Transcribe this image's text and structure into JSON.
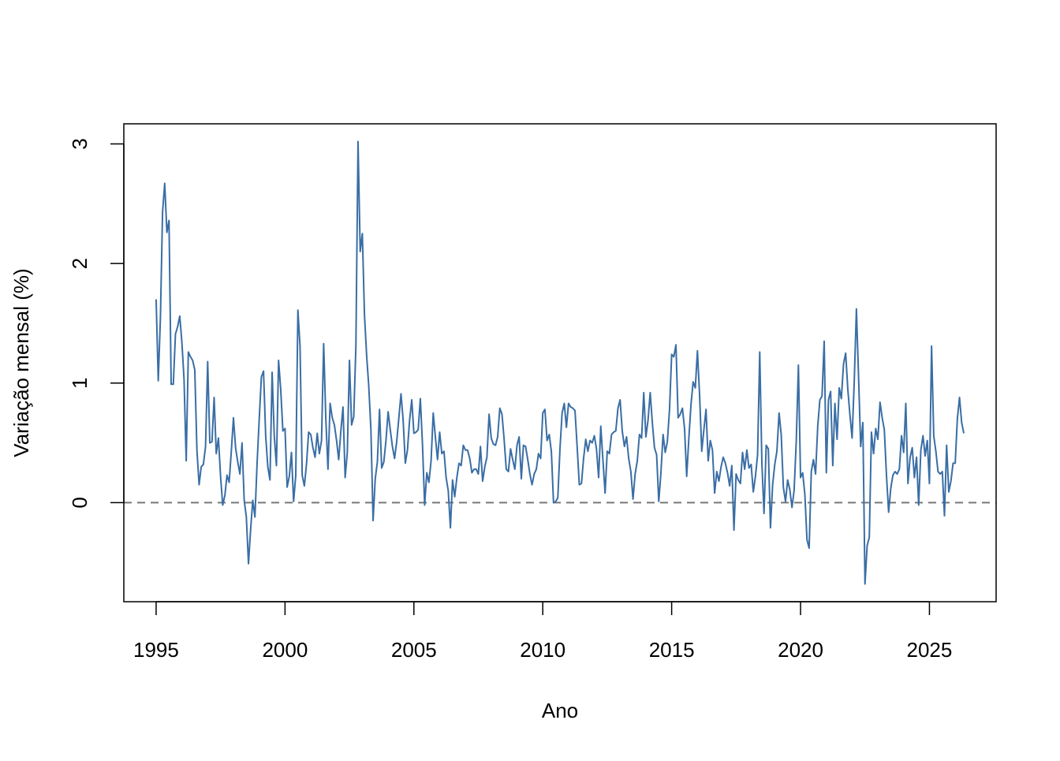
{
  "chart_data": {
    "type": "line",
    "x_label": "Ano",
    "y_label": "Variação mensal (%)",
    "xlim": [
      1993.747,
      2027.587
    ],
    "ylim": [
      -0.828,
      3.168
    ],
    "xticks": [
      1995,
      2000,
      2005,
      2010,
      2015,
      2020,
      2025
    ],
    "yticks": [
      0,
      1,
      2,
      3
    ],
    "grid": false,
    "reference_line": {
      "value": 0,
      "color": "#777777",
      "dashed": true
    },
    "x": [
      1995.0,
      1995.083,
      1995.167,
      1995.25,
      1995.333,
      1995.417,
      1995.5,
      1995.583,
      1995.667,
      1995.75,
      1995.833,
      1995.917,
      1996.0,
      1996.083,
      1996.167,
      1996.25,
      1996.333,
      1996.417,
      1996.5,
      1996.583,
      1996.667,
      1996.75,
      1996.833,
      1996.917,
      1997.0,
      1997.083,
      1997.167,
      1997.25,
      1997.333,
      1997.417,
      1997.5,
      1997.583,
      1997.667,
      1997.75,
      1997.833,
      1997.917,
      1998.0,
      1998.083,
      1998.167,
      1998.25,
      1998.333,
      1998.417,
      1998.5,
      1998.583,
      1998.667,
      1998.75,
      1998.833,
      1998.917,
      1999.0,
      1999.083,
      1999.167,
      1999.25,
      1999.333,
      1999.417,
      1999.5,
      1999.583,
      1999.667,
      1999.75,
      1999.833,
      1999.917,
      2000.0,
      2000.083,
      2000.167,
      2000.25,
      2000.333,
      2000.417,
      2000.5,
      2000.583,
      2000.667,
      2000.75,
      2000.833,
      2000.917,
      2001.0,
      2001.083,
      2001.167,
      2001.25,
      2001.333,
      2001.417,
      2001.5,
      2001.583,
      2001.667,
      2001.75,
      2001.833,
      2001.917,
      2002.0,
      2002.083,
      2002.167,
      2002.25,
      2002.333,
      2002.417,
      2002.5,
      2002.583,
      2002.667,
      2002.75,
      2002.833,
      2002.917,
      2003.0,
      2003.083,
      2003.167,
      2003.25,
      2003.333,
      2003.417,
      2003.5,
      2003.583,
      2003.667,
      2003.75,
      2003.833,
      2003.917,
      2004.0,
      2004.083,
      2004.167,
      2004.25,
      2004.333,
      2004.417,
      2004.5,
      2004.583,
      2004.667,
      2004.75,
      2004.833,
      2004.917,
      2005.0,
      2005.083,
      2005.167,
      2005.25,
      2005.333,
      2005.417,
      2005.5,
      2005.583,
      2005.667,
      2005.75,
      2005.833,
      2005.917,
      2006.0,
      2006.083,
      2006.167,
      2006.25,
      2006.333,
      2006.417,
      2006.5,
      2006.583,
      2006.667,
      2006.75,
      2006.833,
      2006.917,
      2007.0,
      2007.083,
      2007.167,
      2007.25,
      2007.333,
      2007.417,
      2007.5,
      2007.583,
      2007.667,
      2007.75,
      2007.833,
      2007.917,
      2008.0,
      2008.083,
      2008.167,
      2008.25,
      2008.333,
      2008.417,
      2008.5,
      2008.583,
      2008.667,
      2008.75,
      2008.833,
      2008.917,
      2009.0,
      2009.083,
      2009.167,
      2009.25,
      2009.333,
      2009.417,
      2009.5,
      2009.583,
      2009.667,
      2009.75,
      2009.833,
      2009.917,
      2010.0,
      2010.083,
      2010.167,
      2010.25,
      2010.333,
      2010.417,
      2010.5,
      2010.583,
      2010.667,
      2010.75,
      2010.833,
      2010.917,
      2011.0,
      2011.083,
      2011.167,
      2011.25,
      2011.333,
      2011.417,
      2011.5,
      2011.583,
      2011.667,
      2011.75,
      2011.833,
      2011.917,
      2012.0,
      2012.083,
      2012.167,
      2012.25,
      2012.333,
      2012.417,
      2012.5,
      2012.583,
      2012.667,
      2012.75,
      2012.833,
      2012.917,
      2013.0,
      2013.083,
      2013.167,
      2013.25,
      2013.333,
      2013.417,
      2013.5,
      2013.583,
      2013.667,
      2013.75,
      2013.833,
      2013.917,
      2014.0,
      2014.083,
      2014.167,
      2014.25,
      2014.333,
      2014.417,
      2014.5,
      2014.583,
      2014.667,
      2014.75,
      2014.833,
      2014.917,
      2015.0,
      2015.083,
      2015.167,
      2015.25,
      2015.333,
      2015.417,
      2015.5,
      2015.583,
      2015.667,
      2015.75,
      2015.833,
      2015.917,
      2016.0,
      2016.083,
      2016.167,
      2016.25,
      2016.333,
      2016.417,
      2016.5,
      2016.583,
      2016.667,
      2016.75,
      2016.833,
      2016.917,
      2017.0,
      2017.083,
      2017.167,
      2017.25,
      2017.333,
      2017.417,
      2017.5,
      2017.583,
      2017.667,
      2017.75,
      2017.833,
      2017.917,
      2018.0,
      2018.083,
      2018.167,
      2018.25,
      2018.333,
      2018.417,
      2018.5,
      2018.583,
      2018.667,
      2018.75,
      2018.833,
      2018.917,
      2019.0,
      2019.083,
      2019.167,
      2019.25,
      2019.333,
      2019.417,
      2019.5,
      2019.583,
      2019.667,
      2019.75,
      2019.833,
      2019.917,
      2020.0,
      2020.083,
      2020.167,
      2020.25,
      2020.333,
      2020.417,
      2020.5,
      2020.583,
      2020.667,
      2020.75,
      2020.833,
      2020.917,
      2021.0,
      2021.083,
      2021.167,
      2021.25,
      2021.333,
      2021.417,
      2021.5,
      2021.583,
      2021.667,
      2021.75,
      2021.833,
      2021.917,
      2022.0,
      2022.083,
      2022.167,
      2022.25,
      2022.333,
      2022.417,
      2022.5,
      2022.583,
      2022.667,
      2022.75,
      2022.833,
      2022.917,
      2023.0,
      2023.083,
      2023.167,
      2023.25,
      2023.333,
      2023.417,
      2023.5,
      2023.583,
      2023.667,
      2023.75,
      2023.833,
      2023.917,
      2024.0,
      2024.083,
      2024.167,
      2024.25,
      2024.333,
      2024.417,
      2024.5,
      2024.583,
      2024.667,
      2024.75,
      2024.833,
      2024.917,
      2025.0,
      2025.083,
      2025.167,
      2025.25,
      2025.333,
      2025.417,
      2025.5,
      2025.583,
      2025.667,
      2025.75,
      2025.833,
      2025.917,
      2026.0,
      2026.083,
      2026.167,
      2026.25,
      2026.333
    ],
    "series": [
      {
        "color": "#3a6ea5",
        "values": [
          1.7,
          1.02,
          1.55,
          2.43,
          2.67,
          2.26,
          2.36,
          0.99,
          0.99,
          1.41,
          1.47,
          1.56,
          1.34,
          1.03,
          0.35,
          1.26,
          1.22,
          1.19,
          1.11,
          0.44,
          0.15,
          0.3,
          0.32,
          0.47,
          1.18,
          0.5,
          0.51,
          0.88,
          0.41,
          0.54,
          0.22,
          -0.02,
          0.06,
          0.23,
          0.17,
          0.43,
          0.71,
          0.46,
          0.34,
          0.24,
          0.5,
          0.02,
          -0.12,
          -0.51,
          -0.22,
          0.02,
          -0.12,
          0.33,
          0.7,
          1.05,
          1.1,
          0.56,
          0.3,
          0.19,
          1.09,
          0.56,
          0.31,
          1.19,
          0.95,
          0.6,
          0.62,
          0.13,
          0.22,
          0.42,
          0.01,
          0.23,
          1.61,
          1.31,
          0.23,
          0.14,
          0.32,
          0.59,
          0.57,
          0.46,
          0.38,
          0.58,
          0.41,
          0.52,
          1.33,
          0.7,
          0.28,
          0.83,
          0.71,
          0.65,
          0.52,
          0.36,
          0.6,
          0.8,
          0.21,
          0.42,
          1.19,
          0.65,
          0.72,
          1.31,
          3.02,
          2.1,
          2.25,
          1.57,
          1.23,
          0.97,
          0.61,
          -0.15,
          0.2,
          0.34,
          0.78,
          0.29,
          0.34,
          0.52,
          0.76,
          0.61,
          0.47,
          0.37,
          0.51,
          0.71,
          0.91,
          0.69,
          0.33,
          0.44,
          0.69,
          0.86,
          0.58,
          0.59,
          0.61,
          0.87,
          0.49,
          -0.02,
          0.25,
          0.17,
          0.35,
          0.75,
          0.55,
          0.36,
          0.59,
          0.41,
          0.43,
          0.21,
          0.1,
          -0.21,
          0.19,
          0.05,
          0.21,
          0.33,
          0.31,
          0.48,
          0.44,
          0.44,
          0.37,
          0.25,
          0.28,
          0.28,
          0.24,
          0.47,
          0.18,
          0.3,
          0.38,
          0.74,
          0.54,
          0.49,
          0.48,
          0.55,
          0.79,
          0.74,
          0.53,
          0.28,
          0.26,
          0.45,
          0.36,
          0.28,
          0.48,
          0.55,
          0.2,
          0.48,
          0.47,
          0.36,
          0.24,
          0.15,
          0.24,
          0.28,
          0.41,
          0.37,
          0.75,
          0.78,
          0.52,
          0.57,
          0.43,
          0.0,
          0.01,
          0.04,
          0.45,
          0.75,
          0.83,
          0.63,
          0.83,
          0.8,
          0.79,
          0.77,
          0.47,
          0.15,
          0.16,
          0.37,
          0.53,
          0.43,
          0.52,
          0.5,
          0.56,
          0.45,
          0.21,
          0.64,
          0.36,
          0.08,
          0.43,
          0.41,
          0.57,
          0.59,
          0.6,
          0.79,
          0.86,
          0.6,
          0.47,
          0.55,
          0.37,
          0.26,
          0.03,
          0.24,
          0.35,
          0.57,
          0.54,
          0.92,
          0.55,
          0.69,
          0.92,
          0.67,
          0.46,
          0.4,
          0.01,
          0.25,
          0.57,
          0.42,
          0.51,
          0.78,
          1.24,
          1.22,
          1.32,
          0.71,
          0.74,
          0.79,
          0.62,
          0.22,
          0.54,
          0.82,
          1.01,
          0.96,
          1.27,
          0.9,
          0.43,
          0.61,
          0.78,
          0.35,
          0.52,
          0.44,
          0.08,
          0.26,
          0.18,
          0.3,
          0.38,
          0.33,
          0.25,
          0.14,
          0.31,
          -0.23,
          0.24,
          0.19,
          0.16,
          0.42,
          0.28,
          0.44,
          0.29,
          0.32,
          0.09,
          0.22,
          0.4,
          1.26,
          0.33,
          -0.09,
          0.48,
          0.45,
          -0.21,
          0.15,
          0.32,
          0.43,
          0.75,
          0.57,
          0.13,
          0.01,
          0.19,
          0.11,
          -0.04,
          0.1,
          0.51,
          1.15,
          0.21,
          0.25,
          0.07,
          -0.31,
          -0.38,
          0.26,
          0.36,
          0.24,
          0.64,
          0.86,
          0.89,
          1.35,
          0.25,
          0.86,
          0.93,
          0.31,
          0.83,
          0.53,
          0.96,
          0.87,
          1.16,
          1.25,
          0.95,
          0.73,
          0.54,
          1.01,
          1.62,
          1.06,
          0.47,
          0.67,
          -0.68,
          -0.36,
          -0.29,
          0.59,
          0.41,
          0.62,
          0.53,
          0.84,
          0.71,
          0.61,
          0.23,
          -0.08,
          0.12,
          0.23,
          0.26,
          0.24,
          0.28,
          0.56,
          0.42,
          0.83,
          0.16,
          0.38,
          0.46,
          0.21,
          0.38,
          -0.02,
          0.44,
          0.56,
          0.39,
          0.52,
          0.16,
          1.31,
          0.56,
          0.43,
          0.26,
          0.24,
          0.26,
          -0.11,
          0.48,
          0.09,
          0.18,
          0.33,
          0.33,
          0.7,
          0.88,
          0.67,
          0.58
        ]
      }
    ]
  }
}
